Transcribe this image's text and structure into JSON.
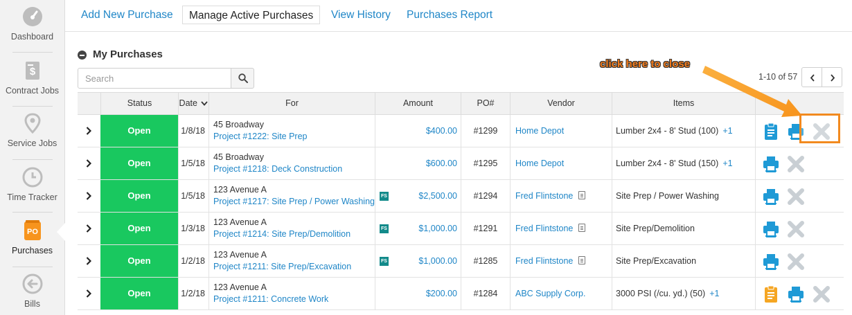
{
  "sidebar": {
    "items": [
      {
        "label": "Dashboard",
        "icon": "dashboard-icon"
      },
      {
        "label": "Contract Jobs",
        "icon": "contract-icon"
      },
      {
        "label": "Service Jobs",
        "icon": "map-pin-icon"
      },
      {
        "label": "Time Tracker",
        "icon": "clock-icon"
      },
      {
        "label": "Purchases",
        "icon": "po-icon",
        "badge": "PO",
        "active": true
      },
      {
        "label": "Bills",
        "icon": "back-arrow-icon"
      }
    ]
  },
  "tabs": [
    {
      "label": "Add New Purchase"
    },
    {
      "label": "Manage Active Purchases",
      "active": true
    },
    {
      "label": "View History"
    },
    {
      "label": "Purchases Report"
    }
  ],
  "section": {
    "title": "My Purchases"
  },
  "search": {
    "placeholder": "Search",
    "value": ""
  },
  "pager": {
    "text": "1-10 of 57"
  },
  "table": {
    "headers": {
      "status": "Status",
      "date": "Date",
      "for": "For",
      "amount": "Amount",
      "po": "PO#",
      "vendor": "Vendor",
      "items": "Items"
    },
    "fs_label": "FS",
    "rows": [
      {
        "status": "Open",
        "date": "1/8/18",
        "address": "45 Broadway",
        "project": "Project #1222: Site Prep",
        "fs": false,
        "amount": "$400.00",
        "po": "#1299",
        "vendor": "Home Depot",
        "doc": false,
        "items": "Lumber 2x4 - 8' Stud (100)",
        "items_more": "+1",
        "actions": [
          "clipboard",
          "print",
          "close"
        ]
      },
      {
        "status": "Open",
        "date": "1/5/18",
        "address": "45 Broadway",
        "project": "Project #1218: Deck Construction",
        "fs": false,
        "amount": "$600.00",
        "po": "#1295",
        "vendor": "Home Depot",
        "doc": false,
        "items": "Lumber 2x4 - 8' Stud (150)",
        "items_more": "+1",
        "actions": [
          "print",
          "close"
        ]
      },
      {
        "status": "Open",
        "date": "1/5/18",
        "address": "123 Avenue A",
        "project": "Project #1217: Site Prep / Power Washing",
        "fs": true,
        "amount": "$2,500.00",
        "po": "#1294",
        "vendor": "Fred Flintstone",
        "doc": true,
        "items": "Site Prep / Power Washing",
        "items_more": "",
        "actions": [
          "print",
          "close"
        ]
      },
      {
        "status": "Open",
        "date": "1/3/18",
        "address": "123 Avenue A",
        "project": "Project #1214: Site Prep/Demolition",
        "fs": true,
        "amount": "$1,000.00",
        "po": "#1291",
        "vendor": "Fred Flintstone",
        "doc": true,
        "items": "Site Prep/Demolition",
        "items_more": "",
        "actions": [
          "print",
          "close"
        ]
      },
      {
        "status": "Open",
        "date": "1/2/18",
        "address": "123 Avenue A",
        "project": "Project #1211: Site Prep/Excavation",
        "fs": true,
        "amount": "$1,000.00",
        "po": "#1285",
        "vendor": "Fred Flintstone",
        "doc": true,
        "items": "Site Prep/Excavation",
        "items_more": "",
        "actions": [
          "print",
          "close"
        ]
      },
      {
        "status": "Open",
        "date": "1/2/18",
        "address": "123 Avenue A",
        "project": "Project #1211: Concrete Work",
        "fs": false,
        "amount": "$200.00",
        "po": "#1284",
        "vendor": "ABC Supply Corp.",
        "doc": false,
        "items": "3000 PSI (/cu. yd.) (50)",
        "items_more": "+1",
        "actions": [
          "clipboard-orange",
          "print",
          "close"
        ]
      }
    ]
  },
  "annotation": {
    "text": "click here to close"
  },
  "colors": {
    "accent": "#1f86c7",
    "status_open": "#19c85f",
    "highlight": "#f28a1f",
    "orange_clip": "#f5a623"
  }
}
